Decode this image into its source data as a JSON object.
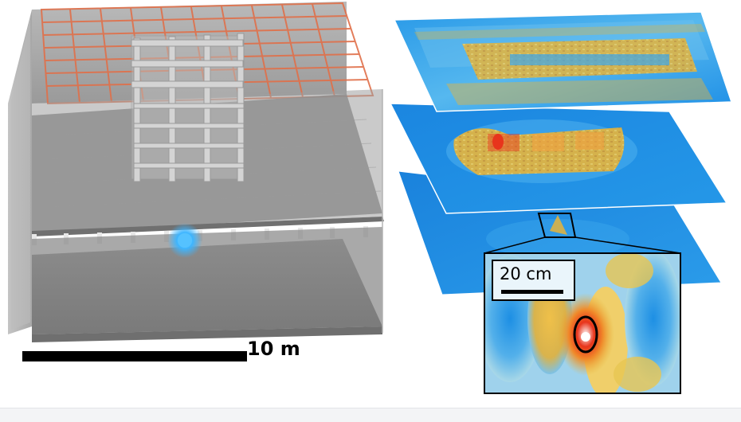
{
  "labels": {
    "building_scale": "10 m",
    "inset_scale": "20 cm"
  },
  "colors": {
    "building_gray": "#8e8e8e",
    "grid_orange": "#e0704a",
    "source_blue": "#3db5ff",
    "field_blue": "#1e8fe6",
    "field_yellow": "#e6b43a",
    "hotspot_red": "#e8341c"
  },
  "icons": {
    "source": "glowing-sphere-icon",
    "focus": "target-ellipse-icon"
  }
}
